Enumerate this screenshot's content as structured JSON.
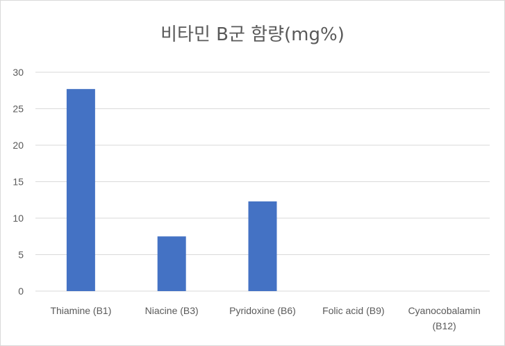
{
  "chart_data": {
    "type": "bar",
    "title": "비타민 B군 함량(mg%)",
    "categories": [
      "Thiamine (B1)",
      "Niacine (B3)",
      "Pyridoxine (B6)",
      "Folic acid (B9)",
      "Cyanocobalamin (B12)"
    ],
    "category_label_lines": [
      [
        "Thiamine (B1)"
      ],
      [
        "Niacine (B3)"
      ],
      [
        "Pyridoxine (B6)"
      ],
      [
        "Folic acid (B9)"
      ],
      [
        "Cyanocobalamin",
        "(B12)"
      ]
    ],
    "values": [
      27.7,
      7.5,
      12.3,
      0,
      0
    ],
    "ylim": [
      0,
      30
    ],
    "yticks": [
      0,
      5,
      10,
      15,
      20,
      25,
      30
    ],
    "xlabel": "",
    "ylabel": "",
    "grid": true,
    "legend": "none",
    "bar_color": "#4472c4",
    "grid_color": "#d9d9d9"
  }
}
